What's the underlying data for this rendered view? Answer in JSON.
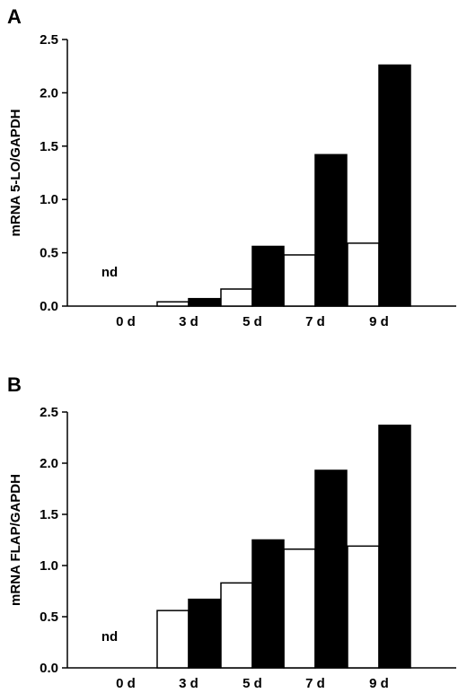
{
  "chart_data": [
    {
      "panel": "A",
      "type": "bar",
      "ylabel": "mRNA 5-LO/GAPDH",
      "ylim": [
        0,
        2.5
      ],
      "yticks": [
        "0.0",
        "0.5",
        "1.0",
        "1.5",
        "2.0",
        "2.5"
      ],
      "categories": [
        "0 d",
        "3 d",
        "5 d",
        "7 d",
        "9 d"
      ],
      "series": [
        {
          "fill": "#ffffff",
          "values": [
            null,
            0.04,
            0.16,
            0.48,
            0.59
          ]
        },
        {
          "fill": "#000000",
          "values": [
            null,
            0.07,
            0.56,
            1.42,
            2.26
          ]
        }
      ],
      "annotations": [
        {
          "text": "nd",
          "category": "0 d"
        }
      ]
    },
    {
      "panel": "B",
      "type": "bar",
      "ylabel": "mRNA FLAP/GAPDH",
      "ylim": [
        0,
        2.5
      ],
      "yticks": [
        "0.0",
        "0.5",
        "1.0",
        "1.5",
        "2.0",
        "2.5"
      ],
      "categories": [
        "0 d",
        "3 d",
        "5 d",
        "7 d",
        "9 d"
      ],
      "series": [
        {
          "fill": "#ffffff",
          "values": [
            null,
            0.56,
            0.83,
            1.16,
            1.19
          ]
        },
        {
          "fill": "#000000",
          "values": [
            null,
            0.67,
            1.25,
            1.93,
            2.37
          ]
        }
      ],
      "annotations": [
        {
          "text": "nd",
          "category": "0 d"
        }
      ]
    }
  ]
}
